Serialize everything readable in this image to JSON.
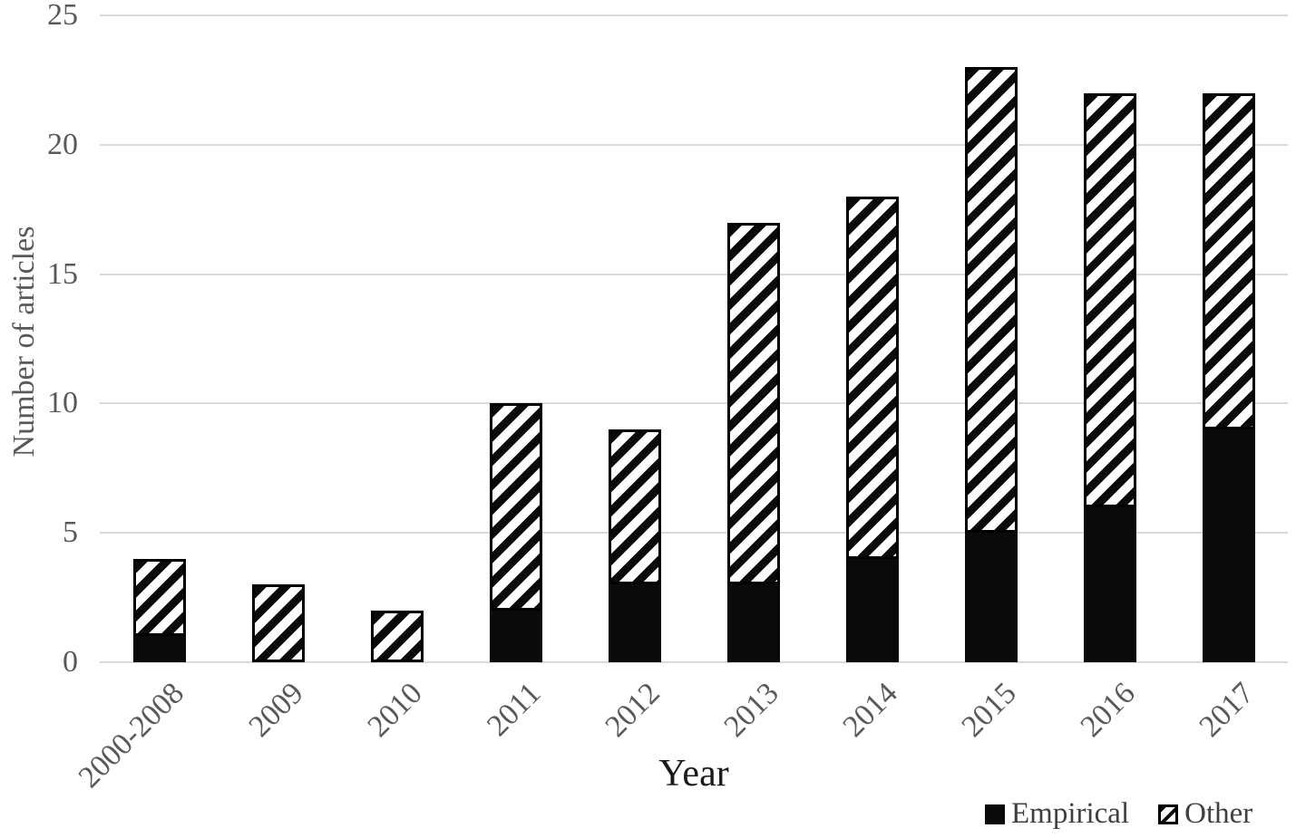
{
  "chart_data": {
    "type": "bar",
    "stacked": true,
    "title": "",
    "xlabel": "Year",
    "ylabel": "Number of articles",
    "categories": [
      "2000-2008",
      "2009",
      "2010",
      "2011",
      "2012",
      "2013",
      "2014",
      "2015",
      "2016",
      "2017"
    ],
    "series": [
      {
        "name": "Empirical",
        "style": "solid-black",
        "values": [
          1,
          0,
          0,
          2,
          3,
          3,
          4,
          5,
          6,
          9
        ]
      },
      {
        "name": "Other",
        "style": "diagonal-hatch",
        "values": [
          3,
          3,
          2,
          8,
          6,
          14,
          14,
          18,
          16,
          13
        ]
      }
    ],
    "totals": [
      4,
      3,
      2,
      10,
      9,
      17,
      18,
      23,
      22,
      22
    ],
    "ylim": [
      0,
      25
    ],
    "yticks": [
      0,
      5,
      10,
      15,
      20,
      25
    ],
    "grid": true,
    "legend_position": "bottom-right"
  },
  "colors": {
    "bar_fill": "#0a0a0a",
    "hatch_background": "#ffffff",
    "gridline": "#d9d9d9",
    "axis_text": "#595959",
    "legend_text": "#404040",
    "x_title_text": "#1a1a1a"
  }
}
